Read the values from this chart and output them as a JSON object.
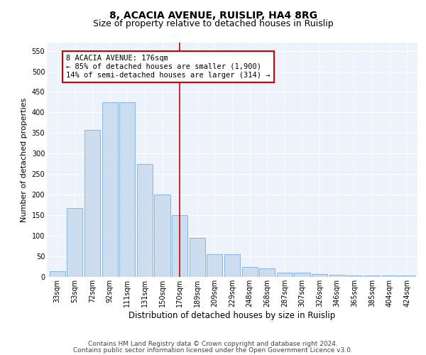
{
  "title": "8, ACACIA AVENUE, RUISLIP, HA4 8RG",
  "subtitle": "Size of property relative to detached houses in Ruislip",
  "xlabel": "Distribution of detached houses by size in Ruislip",
  "ylabel": "Number of detached properties",
  "categories": [
    "33sqm",
    "53sqm",
    "72sqm",
    "92sqm",
    "111sqm",
    "131sqm",
    "150sqm",
    "170sqm",
    "189sqm",
    "209sqm",
    "229sqm",
    "248sqm",
    "268sqm",
    "287sqm",
    "307sqm",
    "326sqm",
    "346sqm",
    "365sqm",
    "385sqm",
    "404sqm",
    "424sqm"
  ],
  "values": [
    13,
    168,
    357,
    425,
    425,
    275,
    200,
    150,
    95,
    55,
    55,
    25,
    20,
    11,
    11,
    7,
    5,
    3,
    3,
    3,
    3
  ],
  "bar_color": "#ccddf0",
  "bar_edge_color": "#7aade0",
  "line_x_index": 7,
  "annotation_line1": "8 ACACIA AVENUE: 176sqm",
  "annotation_line2": "← 85% of detached houses are smaller (1,900)",
  "annotation_line3": "14% of semi-detached houses are larger (314) →",
  "annotation_box_color": "#ffffff",
  "annotation_box_edge": "#cc0000",
  "line_color": "#cc0000",
  "ylim": [
    0,
    570
  ],
  "yticks": [
    0,
    50,
    100,
    150,
    200,
    250,
    300,
    350,
    400,
    450,
    500,
    550
  ],
  "background_color": "#eef2fb",
  "footer1": "Contains HM Land Registry data © Crown copyright and database right 2024.",
  "footer2": "Contains public sector information licensed under the Open Government Licence v3.0.",
  "title_fontsize": 10,
  "subtitle_fontsize": 9,
  "xlabel_fontsize": 8.5,
  "ylabel_fontsize": 8,
  "tick_fontsize": 7,
  "annot_fontsize": 7.5,
  "footer_fontsize": 6.5
}
